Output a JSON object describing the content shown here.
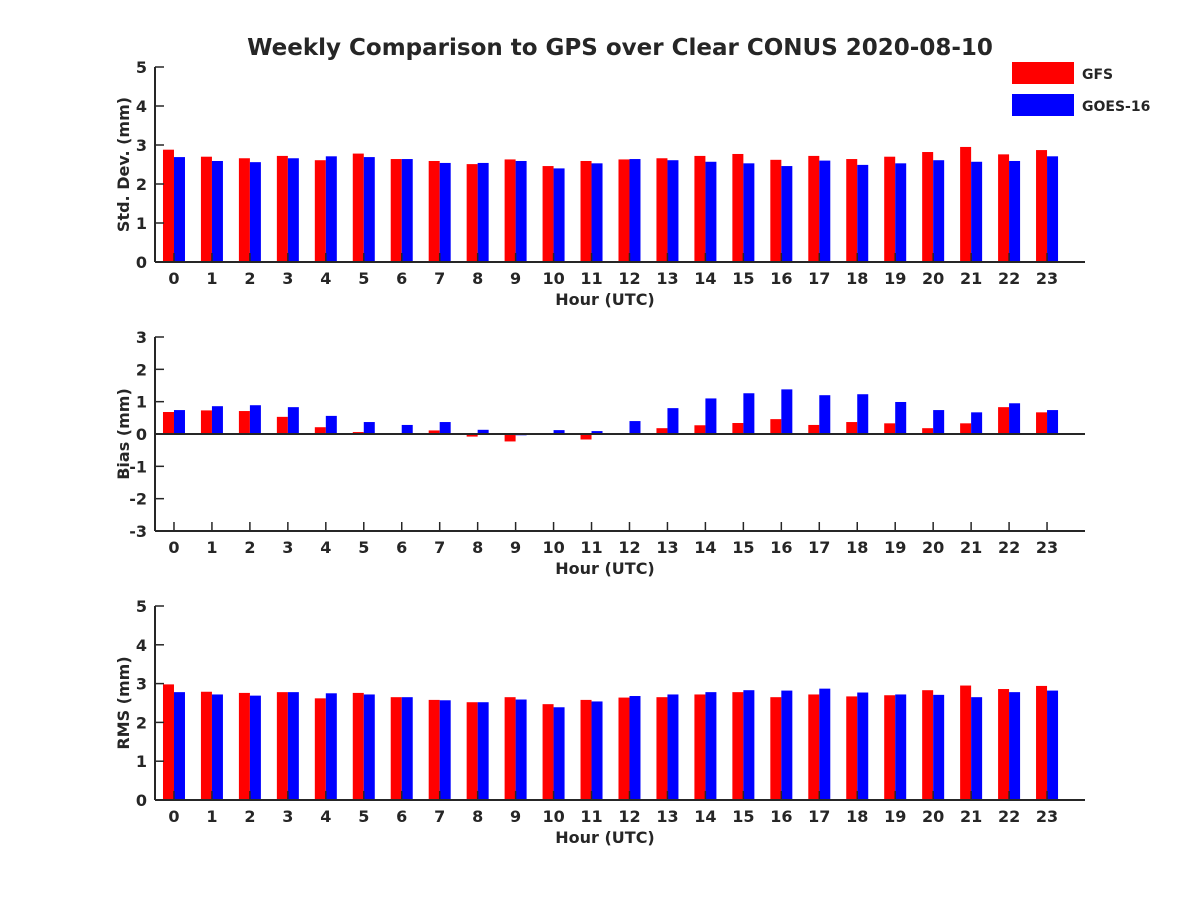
{
  "title": "Weekly Comparison to GPS over Clear CONUS 2020-08-10",
  "colors": {
    "GFS": "#ff0000",
    "GOES-16": "#0000ff"
  },
  "legend": {
    "placement": "top-right",
    "entries": [
      "GFS",
      "GOES-16"
    ]
  },
  "chart_data": [
    {
      "type": "bar",
      "ylabel": "Std. Dev. (mm)",
      "xlabel": "Hour (UTC)",
      "ylim": [
        0,
        5
      ],
      "yticks": [
        "0",
        "1",
        "2",
        "3",
        "4",
        "5"
      ],
      "categories": [
        "0",
        "1",
        "2",
        "3",
        "4",
        "5",
        "6",
        "7",
        "8",
        "9",
        "10",
        "11",
        "12",
        "13",
        "14",
        "15",
        "16",
        "17",
        "18",
        "19",
        "20",
        "21",
        "22",
        "23"
      ],
      "series": [
        {
          "name": "GFS",
          "values": [
            2.88,
            2.7,
            2.66,
            2.72,
            2.61,
            2.78,
            2.64,
            2.59,
            2.51,
            2.63,
            2.46,
            2.59,
            2.63,
            2.66,
            2.72,
            2.77,
            2.62,
            2.72,
            2.64,
            2.7,
            2.82,
            2.95,
            2.76,
            2.87
          ]
        },
        {
          "name": "GOES-16",
          "values": [
            2.69,
            2.59,
            2.56,
            2.66,
            2.71,
            2.69,
            2.64,
            2.54,
            2.54,
            2.59,
            2.4,
            2.53,
            2.64,
            2.61,
            2.57,
            2.53,
            2.46,
            2.6,
            2.49,
            2.53,
            2.61,
            2.57,
            2.59,
            2.71
          ]
        }
      ]
    },
    {
      "type": "bar",
      "ylabel": "Bias (mm)",
      "xlabel": "Hour (UTC)",
      "ylim": [
        -3,
        3
      ],
      "yticks": [
        "-3",
        "-2",
        "-1",
        "0",
        "1",
        "2",
        "3"
      ],
      "categories": [
        "0",
        "1",
        "2",
        "3",
        "4",
        "5",
        "6",
        "7",
        "8",
        "9",
        "10",
        "11",
        "12",
        "13",
        "14",
        "15",
        "16",
        "17",
        "18",
        "19",
        "20",
        "21",
        "22",
        "23"
      ],
      "series": [
        {
          "name": "GFS",
          "values": [
            0.68,
            0.73,
            0.71,
            0.53,
            0.21,
            0.06,
            0.0,
            0.11,
            -0.08,
            -0.23,
            0.0,
            -0.17,
            0.0,
            0.18,
            0.27,
            0.34,
            0.46,
            0.28,
            0.37,
            0.33,
            0.18,
            0.33,
            0.83,
            0.67
          ]
        },
        {
          "name": "GOES-16",
          "values": [
            0.74,
            0.86,
            0.89,
            0.83,
            0.56,
            0.37,
            0.28,
            0.37,
            0.13,
            -0.04,
            0.12,
            0.09,
            0.4,
            0.8,
            1.1,
            1.26,
            1.38,
            1.2,
            1.23,
            0.99,
            0.74,
            0.67,
            0.95,
            0.74
          ]
        }
      ]
    },
    {
      "type": "bar",
      "ylabel": "RMS (mm)",
      "xlabel": "Hour (UTC)",
      "ylim": [
        0,
        5
      ],
      "yticks": [
        "0",
        "1",
        "2",
        "3",
        "4",
        "5"
      ],
      "categories": [
        "0",
        "1",
        "2",
        "3",
        "4",
        "5",
        "6",
        "7",
        "8",
        "9",
        "10",
        "11",
        "12",
        "13",
        "14",
        "15",
        "16",
        "17",
        "18",
        "19",
        "20",
        "21",
        "22",
        "23"
      ],
      "series": [
        {
          "name": "GFS",
          "values": [
            2.98,
            2.79,
            2.76,
            2.78,
            2.62,
            2.76,
            2.65,
            2.58,
            2.52,
            2.65,
            2.47,
            2.58,
            2.64,
            2.65,
            2.72,
            2.78,
            2.65,
            2.72,
            2.67,
            2.7,
            2.83,
            2.95,
            2.86,
            2.94
          ]
        },
        {
          "name": "GOES-16",
          "values": [
            2.78,
            2.72,
            2.69,
            2.78,
            2.75,
            2.72,
            2.65,
            2.57,
            2.52,
            2.59,
            2.39,
            2.54,
            2.68,
            2.72,
            2.78,
            2.83,
            2.82,
            2.87,
            2.77,
            2.72,
            2.71,
            2.65,
            2.78,
            2.82
          ]
        }
      ]
    }
  ]
}
